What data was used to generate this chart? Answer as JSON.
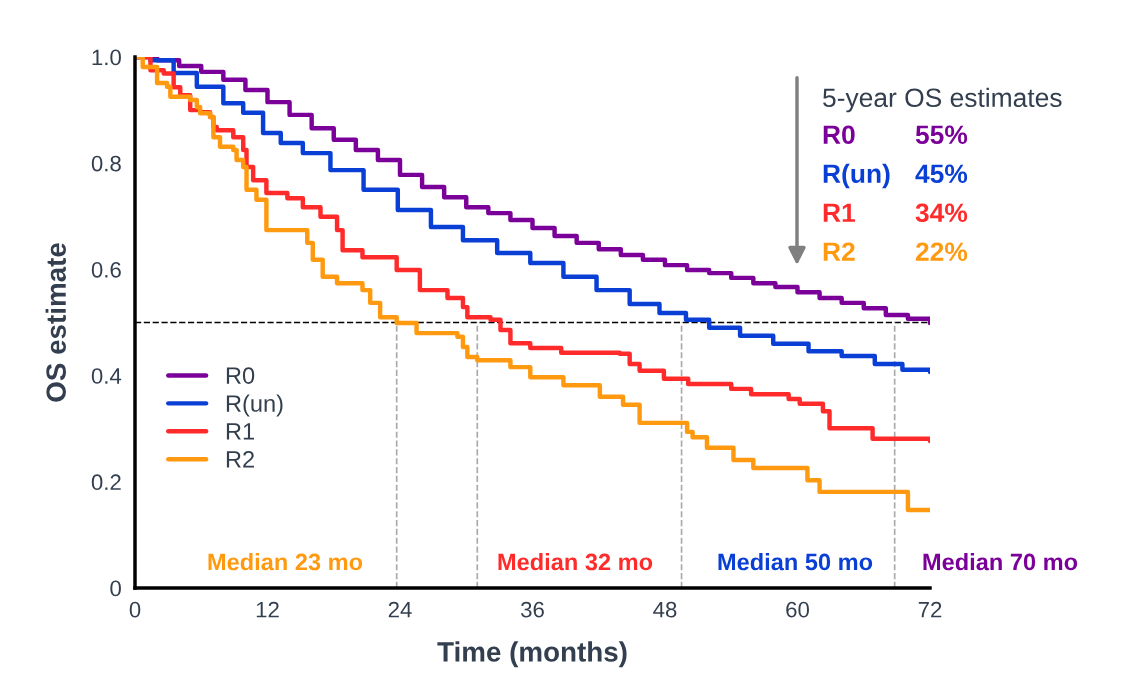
{
  "chart_data": {
    "type": "step",
    "xlabel": "Time (months)",
    "ylabel": "OS estimate",
    "xlim": [
      0,
      72
    ],
    "ylim": [
      0,
      1.0
    ],
    "xticks": [
      0,
      12,
      24,
      36,
      48,
      60,
      72
    ],
    "yticks": [
      0,
      0.2,
      0.4,
      0.6,
      0.8,
      {
        "value": 1.0,
        "label": "1.0"
      }
    ],
    "grid": false,
    "legend": "bottom left",
    "marker": "none",
    "line_style": "solid",
    "series": [
      {
        "name": "R0",
        "color": "#7b0099",
        "x": [
          0,
          2,
          4,
          6,
          8,
          10,
          12,
          14,
          16,
          18,
          20,
          22,
          24,
          26,
          28,
          30,
          32,
          34,
          36,
          38,
          40,
          42,
          44,
          46,
          48,
          50,
          52,
          54,
          56,
          58,
          60,
          62,
          64,
          66,
          68,
          70,
          72
        ],
        "values": [
          1.0,
          0.994,
          0.983,
          0.972,
          0.957,
          0.938,
          0.915,
          0.891,
          0.866,
          0.844,
          0.825,
          0.806,
          0.778,
          0.755,
          0.736,
          0.717,
          0.706,
          0.693,
          0.678,
          0.663,
          0.65,
          0.638,
          0.627,
          0.618,
          0.608,
          0.599,
          0.593,
          0.584,
          0.574,
          0.567,
          0.557,
          0.546,
          0.537,
          0.527,
          0.514,
          0.507,
          0.499
        ]
      },
      {
        "name": "R(un)",
        "color": "#0a3fd6",
        "x": [
          0,
          1.4,
          3.5,
          5.6,
          8,
          9.8,
          11.6,
          13.2,
          15.2,
          17.7,
          20.7,
          23.8,
          26.8,
          29.7,
          32.8,
          35.8,
          38.8,
          41.8,
          44.8,
          47.5,
          49.9,
          52,
          54.8,
          57.8,
          61,
          64,
          67,
          69.5,
          72
        ],
        "values": [
          1.0,
          0.994,
          0.97,
          0.944,
          0.913,
          0.895,
          0.857,
          0.838,
          0.819,
          0.787,
          0.75,
          0.712,
          0.68,
          0.655,
          0.631,
          0.612,
          0.586,
          0.561,
          0.535,
          0.518,
          0.505,
          0.49,
          0.475,
          0.46,
          0.446,
          0.437,
          0.422,
          0.411,
          0.407
        ]
      },
      {
        "name": "R1",
        "color": "#ff2a2a",
        "x": [
          0,
          1.4,
          2.6,
          3.5,
          4.1,
          5.0,
          5.9,
          6.8,
          7.1,
          7.4,
          8.9,
          9.8,
          10.1,
          10.7,
          11.9,
          13.8,
          15.2,
          16.8,
          18.3,
          18.8,
          20.6,
          23.7,
          25.8,
          28.3,
          29.7,
          30.1,
          32.2,
          33.1,
          34.0,
          35.8,
          38.6,
          43.9,
          44.8,
          45.7,
          47.9,
          50.1,
          54.0,
          55.8,
          59.2,
          60.2,
          62.3,
          62.9,
          66.8,
          72
        ],
        "values": [
          1.0,
          0.975,
          0.969,
          0.943,
          0.928,
          0.9,
          0.896,
          0.887,
          0.868,
          0.862,
          0.849,
          0.825,
          0.793,
          0.768,
          0.744,
          0.734,
          0.717,
          0.699,
          0.674,
          0.636,
          0.623,
          0.599,
          0.561,
          0.546,
          0.529,
          0.51,
          0.505,
          0.486,
          0.461,
          0.452,
          0.443,
          0.441,
          0.422,
          0.409,
          0.394,
          0.384,
          0.375,
          0.365,
          0.356,
          0.347,
          0.333,
          0.301,
          0.281,
          0.277
        ]
      },
      {
        "name": "R2",
        "color": "#ff9a10",
        "x": [
          0,
          0.7,
          2.0,
          2.9,
          3.2,
          5.0,
          5.6,
          5.9,
          6.8,
          7.1,
          7.7,
          8.9,
          9.2,
          9.8,
          10.1,
          11.0,
          11.9,
          15.6,
          16.1,
          17.0,
          18.3,
          20.6,
          21.3,
          22.2,
          23.7,
          25.5,
          29.2,
          29.7,
          30.1,
          31.0,
          34.0,
          35.8,
          38.8,
          42.1,
          44.2,
          45.7,
          50.0,
          50.5,
          51.8,
          54.2,
          56.0,
          60.9,
          62.0,
          70.0,
          72
        ],
        "values": [
          1.0,
          0.981,
          0.951,
          0.944,
          0.925,
          0.919,
          0.906,
          0.894,
          0.887,
          0.849,
          0.831,
          0.825,
          0.806,
          0.793,
          0.75,
          0.731,
          0.674,
          0.65,
          0.618,
          0.586,
          0.574,
          0.561,
          0.537,
          0.51,
          0.499,
          0.48,
          0.473,
          0.454,
          0.435,
          0.429,
          0.416,
          0.397,
          0.382,
          0.36,
          0.345,
          0.311,
          0.294,
          0.284,
          0.264,
          0.241,
          0.226,
          0.203,
          0.181,
          0.147,
          0.147
        ]
      }
    ],
    "ref_lines": [
      {
        "axis": "y",
        "value": 0.5,
        "color": "#000000",
        "line_style": "dashed"
      },
      {
        "axis": "x",
        "value": 23.7,
        "color": "#aaaaaa",
        "line_style": "dashed"
      },
      {
        "axis": "x",
        "value": 31.0,
        "color": "#aaaaaa",
        "line_style": "dashed"
      },
      {
        "axis": "x",
        "value": 49.5,
        "color": "#aaaaaa",
        "line_style": "dashed"
      },
      {
        "axis": "x",
        "value": 68.8,
        "color": "#aaaaaa",
        "line_style": "dashed"
      }
    ],
    "annotations": [
      "Median 23 mo",
      "Median 32 mo",
      "Median 50 mo",
      "Median 70 mo",
      "5-year OS estimates",
      "55%",
      "45%",
      "34%",
      "22%"
    ]
  }
}
